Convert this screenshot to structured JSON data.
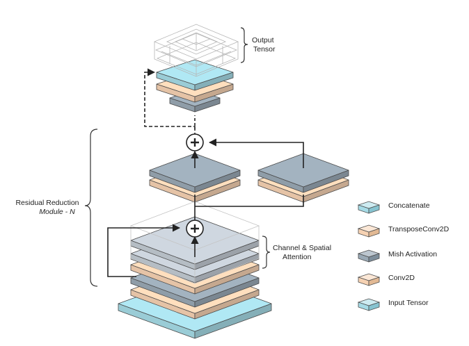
{
  "labels": {
    "output_tensor": [
      "Output",
      "Tensor"
    ],
    "residual_module": [
      "Residual Reduction",
      "Module - N"
    ],
    "channel_spatial": [
      "Channel & Spatial",
      "Attention"
    ]
  },
  "legend": [
    {
      "label": "Concatenate",
      "color": "#a6dbe6"
    },
    {
      "label": "TransposeConv2D",
      "color": "#f6d2b3"
    },
    {
      "label": "Mish Activation",
      "color": "#9aa9b5"
    },
    {
      "label": "Conv2D",
      "color": "#f6d2b3"
    },
    {
      "label": "Input Tensor",
      "color": "#a6dbe6"
    }
  ],
  "colors": {
    "blue": "#a6dbe6",
    "peach": "#f6d2b3",
    "grey": "#9aa9b5",
    "grey_light": "#c3cbd3",
    "wire": "#333333",
    "edge": "#4a4a4a"
  },
  "icons": {
    "sum_node": "circled-plus-icon",
    "legend_swatch": "isometric-slab-icon"
  }
}
